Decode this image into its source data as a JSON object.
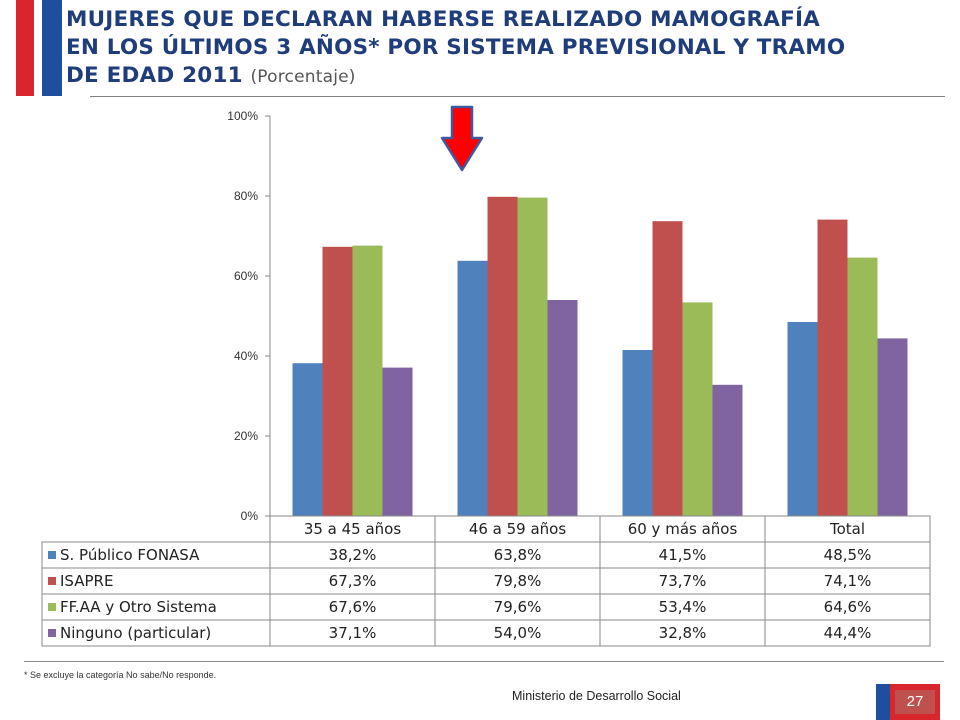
{
  "header": {
    "title_line1": "MUJERES QUE DECLARAN HABERSE REALIZADO MAMOGRAFÍA",
    "title_line2": "EN LOS ÚLTIMOS 3 AÑOS* POR SISTEMA PREVISIONAL Y TRAMO",
    "title_line3": "DE EDAD 2011",
    "subtitle": "(Porcentaje)"
  },
  "footer": {
    "footnote": "* Se excluye la categoría No sabe/No responde.",
    "ministry": "Ministerio de Desarrollo Social",
    "page_number": "27"
  },
  "colors": {
    "flag_red": "#d8262c",
    "flag_blue": "#1f4e9e",
    "arrow_red": "#ff0000",
    "arrow_outline": "#3b5aa0"
  },
  "chart_data": {
    "type": "bar",
    "categories": [
      "35 a 45 años",
      "46 a 59 años",
      "60 y más años",
      "Total"
    ],
    "series": [
      {
        "name": "S. Público FONASA",
        "color": "#4f81bd",
        "values": [
          38.2,
          63.8,
          41.5,
          48.5
        ],
        "labels": [
          "38,2%",
          "63,8%",
          "41,5%",
          "48,5%"
        ]
      },
      {
        "name": "ISAPRE",
        "color": "#c0504d",
        "values": [
          67.3,
          79.8,
          73.7,
          74.1
        ],
        "labels": [
          "67,3%",
          "79,8%",
          "73,7%",
          "74,1%"
        ]
      },
      {
        "name": "FF.AA y Otro Sistema",
        "color": "#9bbb59",
        "values": [
          67.6,
          79.6,
          53.4,
          64.6
        ],
        "labels": [
          "67,6%",
          "79,6%",
          "53,4%",
          "64,6%"
        ]
      },
      {
        "name": "Ninguno (particular)",
        "color": "#8064a2",
        "values": [
          37.1,
          54.0,
          32.8,
          44.4
        ],
        "labels": [
          "37,1%",
          "54,0%",
          "32,8%",
          "44,4%"
        ]
      }
    ],
    "yticks": [
      {
        "value": 0,
        "label": "0%"
      },
      {
        "value": 20,
        "label": "20%"
      },
      {
        "value": 40,
        "label": "40%"
      },
      {
        "value": 60,
        "label": "60%"
      },
      {
        "value": 80,
        "label": "80%"
      },
      {
        "value": 100,
        "label": "100%"
      }
    ],
    "ylim": [
      0,
      100
    ],
    "grid": false,
    "legend": "data-table",
    "annotation": "red arrow pointing down at 46 a 59 años"
  }
}
